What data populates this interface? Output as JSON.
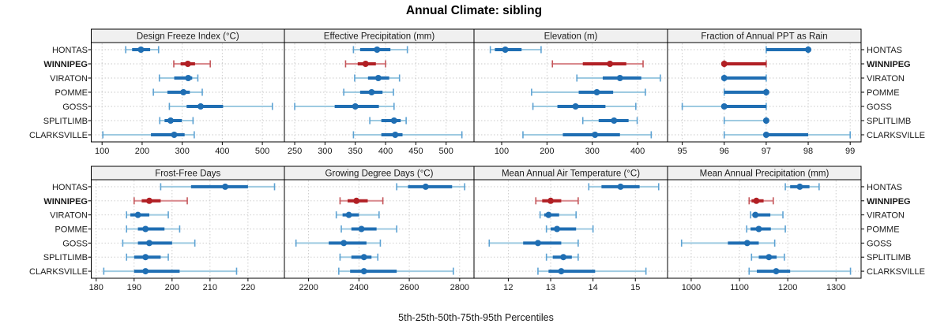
{
  "title": "Annual Climate: sibling",
  "footer": "5th-25th-50th-75th-95th Percentiles",
  "stations": [
    "HONTAS",
    "WINNIPEG",
    "VIRATON",
    "POMME",
    "GOSS",
    "SPLITLIMB",
    "CLARKSVILLE"
  ],
  "highlight_station": "WINNIPEG",
  "colors": {
    "blue_dark": "#1f6eb3",
    "blue_mid": "#5da2d3",
    "blue_light": "#9ecae1",
    "red_dark": "#b11f24",
    "red_mid": "#c4565a",
    "red_light": "#d9898d",
    "strip_bg": "#f0f0f0",
    "border": "#000000",
    "grid": "#c9c9c9",
    "text": "#1a1a1a"
  },
  "chart_data": {
    "type": "percentile-dotplot-trellis",
    "percentiles": [
      5,
      25,
      50,
      75,
      95
    ],
    "grid": "dashed",
    "layout": {
      "rows": 2,
      "cols": 4
    },
    "panels": [
      {
        "slug": "design-freeze-index",
        "title": "Design Freeze Index (°C)",
        "xlim": [
          73,
          555
        ],
        "ticks": [
          100,
          200,
          300,
          400,
          500
        ],
        "values": [
          [
            159,
            175,
            197,
            220,
            241
          ],
          [
            279,
            296,
            314,
            332,
            370
          ],
          [
            243,
            280,
            315,
            325,
            339
          ],
          [
            228,
            263,
            303,
            319,
            350
          ],
          [
            268,
            311,
            346,
            402,
            525
          ],
          [
            244,
            256,
            271,
            299,
            327
          ],
          [
            102,
            222,
            280,
            306,
            330
          ]
        ]
      },
      {
        "slug": "effective-precipitation",
        "title": "Effective Precipitation (mm)",
        "xlim": [
          233,
          546
        ],
        "ticks": [
          250,
          300,
          350,
          400,
          450,
          500
        ],
        "values": [
          [
            347,
            358,
            386,
            408,
            436
          ],
          [
            334,
            354,
            367,
            384,
            400
          ],
          [
            349,
            371,
            388,
            406,
            423
          ],
          [
            331,
            358,
            377,
            395,
            413
          ],
          [
            250,
            316,
            350,
            389,
            414
          ],
          [
            374,
            393,
            414,
            425,
            434
          ],
          [
            347,
            393,
            416,
            428,
            526
          ]
        ]
      },
      {
        "slug": "elevation",
        "title": "Elevation (m)",
        "xlim": [
          39,
          466
        ],
        "ticks": [
          100,
          200,
          300,
          400
        ],
        "values": [
          [
            75,
            85,
            108,
            144,
            187
          ],
          [
            212,
            279,
            339,
            375,
            412
          ],
          [
            266,
            323,
            361,
            408,
            450
          ],
          [
            166,
            270,
            310,
            346,
            417
          ],
          [
            169,
            223,
            263,
            329,
            396
          ],
          [
            279,
            314,
            348,
            380,
            399
          ],
          [
            147,
            235,
            306,
            361,
            430
          ]
        ]
      },
      {
        "slug": "fraction-ppt-rain",
        "title": "Fraction of Annual PPT as Rain",
        "xlim": [
          94.65,
          99.26
        ],
        "ticks": [
          95,
          96,
          97,
          98,
          99
        ],
        "values": [
          [
            97,
            97,
            98,
            98,
            98
          ],
          [
            96,
            96,
            96,
            97,
            97
          ],
          [
            96,
            96,
            96,
            97,
            97
          ],
          [
            96,
            96,
            97,
            97,
            97
          ],
          [
            95,
            96,
            96,
            97,
            97
          ],
          [
            96,
            97,
            97,
            97,
            97
          ],
          [
            96,
            97,
            97,
            98,
            99
          ]
        ]
      },
      {
        "slug": "frost-free-days",
        "title": "Frost-Free Days",
        "xlim": [
          178.7,
          229.6
        ],
        "ticks": [
          180,
          190,
          200,
          210,
          220
        ],
        "values": [
          [
            197,
            205,
            214,
            220,
            227
          ],
          [
            190,
            192,
            194,
            197,
            204
          ],
          [
            188,
            189,
            191,
            194,
            199
          ],
          [
            188,
            191,
            193,
            198,
            202
          ],
          [
            187,
            191,
            194,
            200,
            206
          ],
          [
            188,
            190,
            193,
            197,
            199
          ],
          [
            182,
            190,
            193,
            202,
            217
          ]
        ]
      },
      {
        "slug": "growing-degree-days",
        "title": "Growing Degree Days (°C)",
        "xlim": [
          2104,
          2857
        ],
        "ticks": [
          2200,
          2400,
          2600,
          2800
        ],
        "values": [
          [
            2550,
            2595,
            2665,
            2770,
            2820
          ],
          [
            2325,
            2355,
            2390,
            2435,
            2495
          ],
          [
            2310,
            2335,
            2360,
            2400,
            2480
          ],
          [
            2330,
            2370,
            2410,
            2470,
            2550
          ],
          [
            2150,
            2280,
            2340,
            2430,
            2485
          ],
          [
            2325,
            2370,
            2420,
            2450,
            2475
          ],
          [
            2320,
            2365,
            2420,
            2550,
            2775
          ]
        ]
      },
      {
        "slug": "mean-annual-air-temperature",
        "title": "Mean Annual Air Temperature (°C)",
        "xlim": [
          11.19,
          15.76
        ],
        "ticks": [
          12,
          13,
          14,
          15
        ],
        "values": [
          [
            13.9,
            14.2,
            14.65,
            15.1,
            15.55
          ],
          [
            12.65,
            12.8,
            13.0,
            13.25,
            13.65
          ],
          [
            12.75,
            12.85,
            12.95,
            13.2,
            13.6
          ],
          [
            12.9,
            13.0,
            13.15,
            13.6,
            14.0
          ],
          [
            11.55,
            12.35,
            12.7,
            13.25,
            13.65
          ],
          [
            12.9,
            13.05,
            13.3,
            13.5,
            13.65
          ],
          [
            12.7,
            12.95,
            13.25,
            14.05,
            15.25
          ]
        ]
      },
      {
        "slug": "mean-annual-precipitation",
        "title": "Mean Annual Precipitation (mm)",
        "xlim": [
          951,
          1352
        ],
        "ticks": [
          1000,
          1100,
          1200,
          1300
        ],
        "values": [
          [
            1195,
            1205,
            1225,
            1245,
            1265
          ],
          [
            1120,
            1125,
            1135,
            1150,
            1170
          ],
          [
            1123,
            1127,
            1133,
            1164,
            1190
          ],
          [
            1115,
            1123,
            1140,
            1165,
            1195
          ],
          [
            980,
            1076,
            1116,
            1140,
            1173
          ],
          [
            1125,
            1140,
            1161,
            1177,
            1193
          ],
          [
            1120,
            1136,
            1176,
            1205,
            1330
          ]
        ]
      }
    ]
  }
}
